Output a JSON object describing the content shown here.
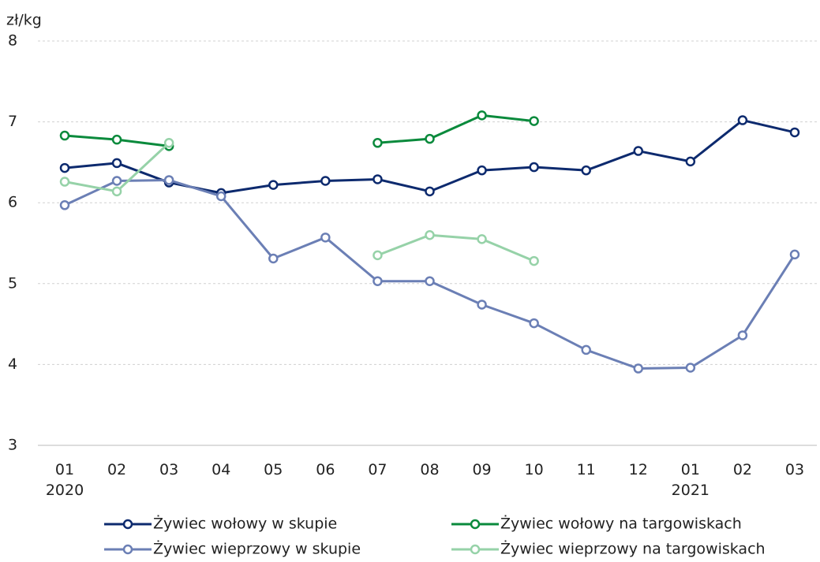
{
  "chart_data": {
    "type": "line",
    "y_label": "zł/kg",
    "categories": [
      "01\n2020",
      "02",
      "03",
      "04",
      "05",
      "06",
      "07",
      "08",
      "09",
      "10",
      "11",
      "12",
      "01\n2021",
      "02",
      "03"
    ],
    "ylim": [
      3,
      8
    ],
    "yticks": [
      3,
      4,
      5,
      6,
      7,
      8
    ],
    "grid": true,
    "series": [
      {
        "name": "Żywiec wołowy w skupie",
        "color": "#0d2a6e",
        "values": [
          6.43,
          6.49,
          6.25,
          6.12,
          6.22,
          6.27,
          6.29,
          6.14,
          6.4,
          6.44,
          6.4,
          6.64,
          6.51,
          7.02,
          6.87
        ]
      },
      {
        "name": "Żywiec wołowy na targowiskach",
        "color": "#0a8a3c",
        "values": [
          6.83,
          6.78,
          6.7,
          null,
          null,
          null,
          6.74,
          6.79,
          7.08,
          7.01,
          null,
          null,
          null,
          null,
          null
        ]
      },
      {
        "name": "Żywiec wieprzowy w skupie",
        "color": "#6b7fb5",
        "values": [
          5.97,
          6.27,
          6.28,
          6.08,
          5.31,
          5.57,
          5.03,
          5.03,
          4.74,
          4.51,
          4.18,
          3.95,
          3.96,
          4.36,
          5.36
        ]
      },
      {
        "name": "Żywiec wieprzowy na targowiskach",
        "color": "#96d2a8",
        "values": [
          6.26,
          6.14,
          6.74,
          null,
          null,
          null,
          5.35,
          5.6,
          5.55,
          5.28,
          null,
          null,
          null,
          null,
          null
        ]
      }
    ]
  }
}
